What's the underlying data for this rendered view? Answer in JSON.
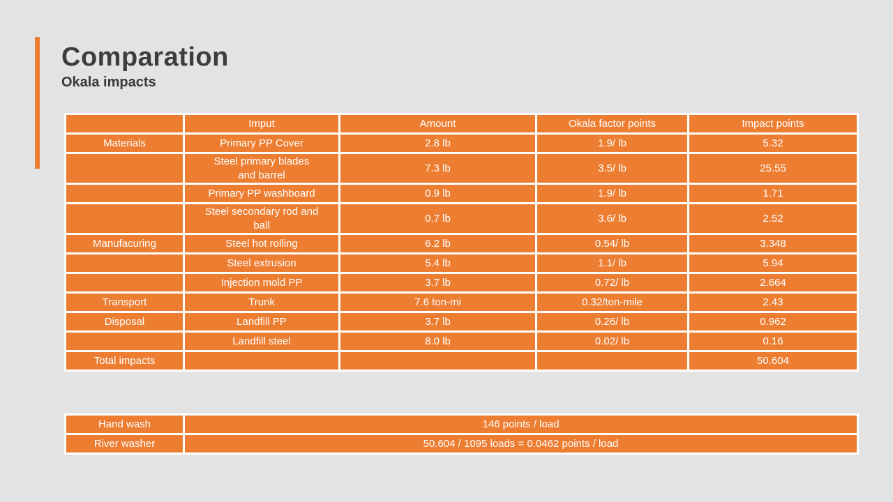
{
  "slide": {
    "title": "Comparation",
    "subtitle": "Okala impacts"
  },
  "colors": {
    "accent_orange": "#ED7D31",
    "background_gray": "#E4E3E3",
    "cell_border_white": "#FFFFFF",
    "title_text": "#3D3D3D",
    "cell_text": "#FFFFFF"
  },
  "main_table": {
    "headers": [
      "",
      "Imput",
      "Amount",
      "Okala factor points",
      "Impact points"
    ],
    "rows": [
      [
        "Materials",
        "Primary PP Cover",
        "2.8 lb",
        "1.9/ lb",
        "5.32"
      ],
      [
        "",
        "Steel primary blades\nand barrel",
        "7.3 lb",
        "3.5/ lb",
        "25.55"
      ],
      [
        "",
        "Primary PP washboard",
        "0.9 lb",
        "1.9/ lb",
        "1.71"
      ],
      [
        "",
        "Steel secondary rod and\nball",
        "0.7 lb",
        "3.6/ lb",
        "2.52"
      ],
      [
        "Manufacuring",
        "Steel hot rolling",
        "6.2 lb",
        "0.54/ lb",
        "3.348"
      ],
      [
        "",
        "Steel extrusion",
        "5.4 lb",
        "1.1/ lb",
        "5.94"
      ],
      [
        "",
        "Injection mold PP",
        "3.7 lb",
        "0.72/ lb",
        "2.664"
      ],
      [
        "Transport",
        "Trunk",
        "7.6 ton-mi",
        "0.32/ton-mile",
        "2.43"
      ],
      [
        "Disposal",
        "Landfill PP",
        "3.7 lb",
        "0.26/ lb",
        "0.962"
      ],
      [
        "",
        "Landfill steel",
        "8.0 lb",
        "0.02/ lb",
        "0.16"
      ],
      [
        "Total impacts",
        "",
        "",
        "",
        "50.604"
      ]
    ]
  },
  "summary_table": {
    "rows": [
      [
        "Hand wash",
        "146 points / load"
      ],
      [
        "River washer",
        "50.604 / 1095 loads = 0.0462 points / load"
      ]
    ]
  }
}
